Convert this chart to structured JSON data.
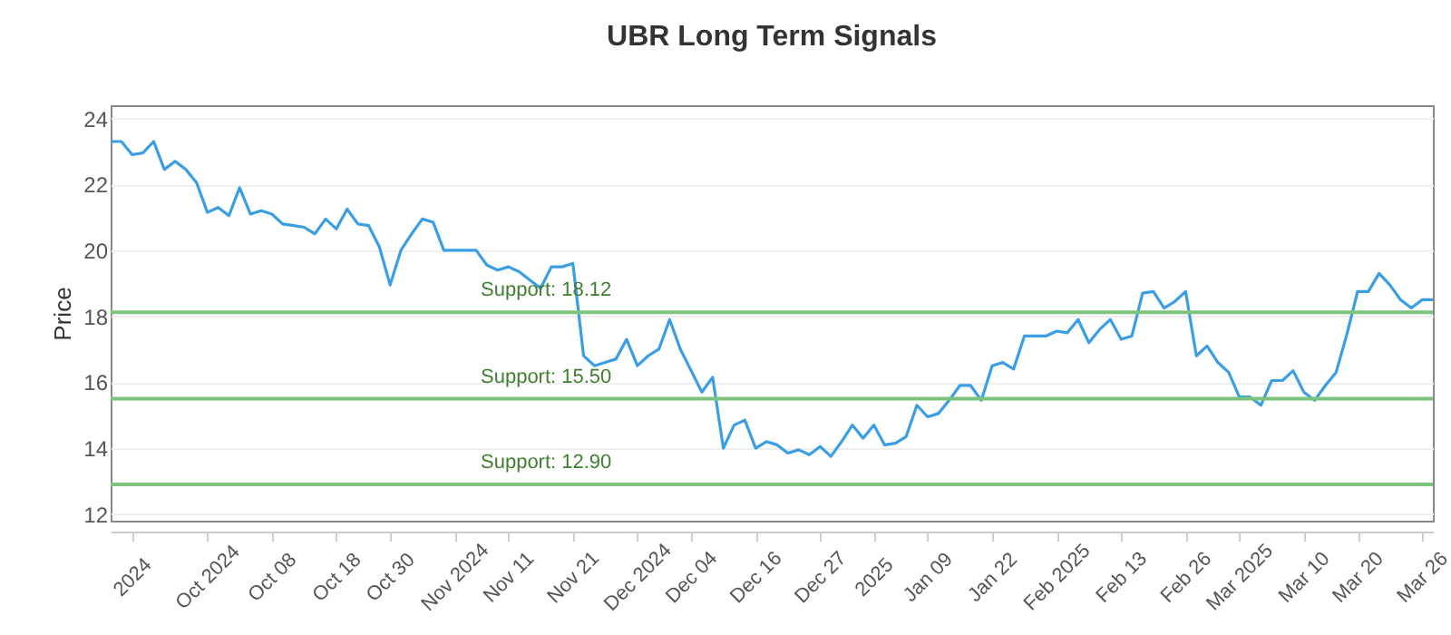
{
  "chart_data": {
    "type": "line",
    "title": "UBR Long Term Signals",
    "ylabel": "Price",
    "categories": [
      null,
      null,
      "2024",
      null,
      null,
      null,
      null,
      null,
      null,
      "Oct 2024",
      null,
      null,
      null,
      null,
      null,
      "Oct 08",
      null,
      null,
      null,
      null,
      null,
      "Oct 18",
      null,
      null,
      null,
      null,
      "Oct 30",
      null,
      null,
      null,
      null,
      null,
      "Nov 2024",
      null,
      null,
      null,
      null,
      "Nov 11",
      null,
      null,
      null,
      null,
      null,
      "Nov 21",
      null,
      null,
      null,
      null,
      null,
      "Dec 2024",
      null,
      null,
      null,
      null,
      "Dec 04",
      null,
      null,
      null,
      null,
      null,
      "Dec 16",
      null,
      null,
      null,
      null,
      null,
      "Dec 27",
      null,
      null,
      null,
      null,
      "2025",
      null,
      null,
      null,
      null,
      "Jan 09",
      null,
      null,
      null,
      null,
      null,
      "Jan 22",
      null,
      null,
      null,
      null,
      null,
      "Feb 2025",
      null,
      null,
      null,
      null,
      null,
      "Feb 13",
      null,
      null,
      null,
      null,
      null,
      "Feb 26",
      null,
      null,
      null,
      null,
      "Mar 2025",
      null,
      null,
      null,
      null,
      null,
      "Mar 10",
      null,
      null,
      null,
      null,
      "Mar 20",
      null,
      null,
      null,
      null,
      null,
      "Mar 26",
      null
    ],
    "series": [
      {
        "color": "#3a9ee4",
        "values": [
          23.3,
          23.3,
          22.9,
          22.95,
          23.3,
          22.45,
          22.7,
          22.45,
          22.05,
          21.15,
          21.3,
          21.05,
          21.9,
          21.1,
          21.2,
          21.1,
          20.8,
          20.75,
          20.7,
          20.5,
          20.95,
          20.65,
          21.25,
          20.8,
          20.75,
          20.1,
          18.95,
          20.0,
          20.5,
          20.95,
          20.85,
          20.0,
          20.0,
          20.0,
          20.0,
          19.55,
          19.4,
          19.5,
          19.35,
          19.1,
          18.85,
          19.5,
          19.5,
          19.6,
          16.8,
          16.5,
          16.6,
          16.7,
          17.3,
          16.5,
          16.8,
          17.0,
          17.9,
          17.0,
          16.35,
          15.7,
          16.15,
          14.0,
          14.7,
          14.85,
          14.0,
          14.2,
          14.1,
          13.85,
          13.95,
          13.8,
          14.05,
          13.75,
          14.2,
          14.7,
          14.3,
          14.7,
          14.1,
          14.15,
          14.35,
          15.3,
          14.95,
          15.05,
          15.45,
          15.9,
          15.9,
          15.45,
          16.5,
          16.6,
          16.4,
          17.4,
          17.4,
          17.4,
          17.55,
          17.5,
          17.9,
          17.2,
          17.6,
          17.9,
          17.3,
          17.4,
          18.7,
          18.75,
          18.25,
          18.45,
          18.75,
          16.8,
          17.1,
          16.6,
          16.3,
          15.55,
          15.55,
          15.3,
          16.05,
          16.05,
          16.35,
          15.7,
          15.45,
          15.9,
          16.3,
          17.45,
          18.75,
          18.75,
          19.3,
          18.95,
          18.5,
          18.25,
          18.5,
          18.5
        ]
      }
    ],
    "ylim": [
      11.8,
      24.4
    ],
    "yticks": [
      12,
      14,
      16,
      18,
      20,
      22,
      24
    ],
    "grid": "y",
    "marker": "none",
    "line_style": "solid",
    "ref_lines": [
      {
        "axis": "y",
        "value": 18.12,
        "label": "Support: 18.12",
        "color": "#7cc47c"
      },
      {
        "axis": "y",
        "value": 15.5,
        "label": "Support: 15.50",
        "color": "#7cc47c"
      },
      {
        "axis": "y",
        "value": 12.9,
        "label": "Support: 12.90",
        "color": "#7cc47c"
      }
    ]
  }
}
